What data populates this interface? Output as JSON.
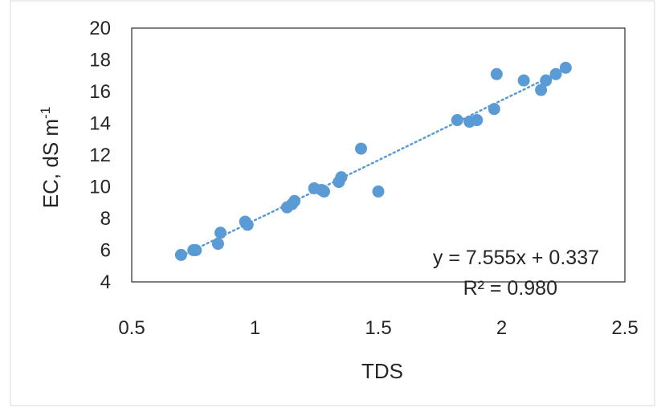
{
  "chart_data": {
    "type": "scatter",
    "xlabel": "TDS",
    "ylabel_main": "EC, dS m",
    "ylabel_sup": "-1",
    "xlim": [
      0.5,
      2.5
    ],
    "ylim": [
      4,
      20
    ],
    "x_ticks": [
      "0.5",
      "1",
      "1.5",
      "2",
      "2.5"
    ],
    "y_ticks": [
      "4",
      "6",
      "8",
      "10",
      "12",
      "14",
      "16",
      "18",
      "20"
    ],
    "x_tick_values": [
      0.5,
      1,
      1.5,
      2,
      2.5
    ],
    "y_tick_values": [
      4,
      6,
      8,
      10,
      12,
      14,
      16,
      18,
      20
    ],
    "grid": false,
    "marker_color": "#5b9bd5",
    "trendline_color": "#5b9bd5",
    "trendline": {
      "slope": 7.555,
      "intercept": 0.337,
      "x_range": [
        0.7,
        2.25
      ]
    },
    "annotations": {
      "equation": "y = 7.555x + 0.337",
      "r_squared": "R² = 0.980"
    },
    "points": [
      {
        "x": 0.7,
        "y": 5.7
      },
      {
        "x": 0.75,
        "y": 6.0
      },
      {
        "x": 0.76,
        "y": 6.0
      },
      {
        "x": 0.85,
        "y": 6.4
      },
      {
        "x": 0.86,
        "y": 7.1
      },
      {
        "x": 0.96,
        "y": 7.8
      },
      {
        "x": 0.97,
        "y": 7.6
      },
      {
        "x": 1.13,
        "y": 8.7
      },
      {
        "x": 1.15,
        "y": 8.9
      },
      {
        "x": 1.16,
        "y": 9.1
      },
      {
        "x": 1.24,
        "y": 9.9
      },
      {
        "x": 1.27,
        "y": 9.8
      },
      {
        "x": 1.28,
        "y": 9.7
      },
      {
        "x": 1.34,
        "y": 10.3
      },
      {
        "x": 1.35,
        "y": 10.6
      },
      {
        "x": 1.43,
        "y": 12.4
      },
      {
        "x": 1.5,
        "y": 9.7
      },
      {
        "x": 1.82,
        "y": 14.2
      },
      {
        "x": 1.87,
        "y": 14.1
      },
      {
        "x": 1.9,
        "y": 14.2
      },
      {
        "x": 1.97,
        "y": 14.9
      },
      {
        "x": 1.98,
        "y": 17.1
      },
      {
        "x": 2.09,
        "y": 16.7
      },
      {
        "x": 2.16,
        "y": 16.1
      },
      {
        "x": 2.18,
        "y": 16.7
      },
      {
        "x": 2.22,
        "y": 17.1
      },
      {
        "x": 2.26,
        "y": 17.5
      }
    ]
  }
}
